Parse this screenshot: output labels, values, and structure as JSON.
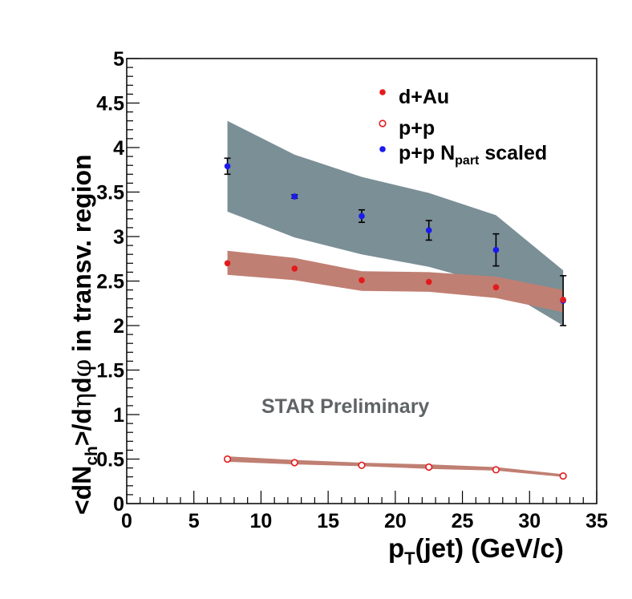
{
  "chart_data": {
    "type": "scatter",
    "xlabel": {
      "main": "p",
      "sub": "T",
      "rest": "(jet) (GeV/c)"
    },
    "ylabel": {
      "part1": "<dN",
      "sub": "ch",
      "part2": ">/d",
      "eta": "η",
      "d": "d",
      "phi": "φ",
      "part3": " in transv. region"
    },
    "xlim": [
      0,
      35
    ],
    "ylim": [
      0,
      5
    ],
    "x_ticks": [
      0,
      5,
      10,
      15,
      20,
      25,
      30,
      35
    ],
    "x_tick_labels": [
      "0",
      "5",
      "10",
      "15",
      "20",
      "25",
      "30",
      "35"
    ],
    "y_ticks": [
      0,
      0.5,
      1,
      1.5,
      2,
      2.5,
      3,
      3.5,
      4,
      4.5,
      5
    ],
    "y_tick_labels": [
      "0",
      "0.5",
      "1",
      "1.5",
      "2",
      "2.5",
      "3",
      "3.5",
      "4",
      "4.5",
      "5"
    ],
    "annotation": "STAR Preliminary",
    "bands": [
      {
        "name": "p+p N_part scaled systematic",
        "color": "#7a8f96",
        "x": [
          7.5,
          12.5,
          17.5,
          22.5,
          27.5,
          32.5
        ],
        "upper": [
          4.3,
          3.92,
          3.67,
          3.49,
          3.24,
          2.62
        ],
        "lower": [
          3.28,
          2.99,
          2.8,
          2.66,
          2.45,
          2.0
        ]
      },
      {
        "name": "d+Au systematic",
        "color": "#c07f73",
        "x": [
          7.5,
          12.5,
          17.5,
          22.5,
          27.5,
          32.5
        ],
        "upper": [
          2.84,
          2.76,
          2.61,
          2.6,
          2.55,
          2.4
        ],
        "lower": [
          2.57,
          2.51,
          2.39,
          2.38,
          2.31,
          2.15
        ]
      },
      {
        "name": "p+p systematic",
        "color": "#c07f73",
        "x": [
          7.5,
          12.5,
          17.5,
          22.5,
          27.5,
          32.5
        ],
        "upper": [
          0.53,
          0.49,
          0.46,
          0.44,
          0.41,
          0.33
        ],
        "lower": [
          0.47,
          0.44,
          0.42,
          0.39,
          0.37,
          0.3
        ]
      }
    ],
    "series": [
      {
        "name": "p+p N_part scaled",
        "marker": "filled",
        "color": "#1a1aee",
        "x": [
          7.5,
          12.5,
          17.5,
          22.5,
          27.5,
          32.5
        ],
        "y": [
          3.79,
          3.45,
          3.23,
          3.07,
          2.85,
          2.28
        ],
        "err": [
          0.09,
          0.02,
          0.07,
          0.11,
          0.18,
          0.28
        ]
      },
      {
        "name": "d+Au",
        "marker": "filled",
        "color": "#e31a1c",
        "x": [
          7.5,
          12.5,
          17.5,
          22.5,
          27.5,
          32.5
        ],
        "y": [
          2.7,
          2.64,
          2.51,
          2.49,
          2.43,
          2.29
        ]
      },
      {
        "name": "p+p",
        "marker": "open",
        "color": "#e31a1c",
        "x": [
          7.5,
          12.5,
          17.5,
          22.5,
          27.5,
          32.5
        ],
        "y": [
          0.5,
          0.46,
          0.43,
          0.41,
          0.38,
          0.31
        ]
      }
    ],
    "legend": {
      "position": "top-right",
      "entries": [
        {
          "label": "d+Au",
          "marker": "filled",
          "color": "#e31a1c"
        },
        {
          "label": "p+p",
          "marker": "open",
          "color": "#e31a1c"
        },
        {
          "label_main": "p+p N",
          "label_sub": "part",
          "label_rest": " scaled",
          "marker": "filled",
          "color": "#1a1aee"
        }
      ]
    }
  }
}
